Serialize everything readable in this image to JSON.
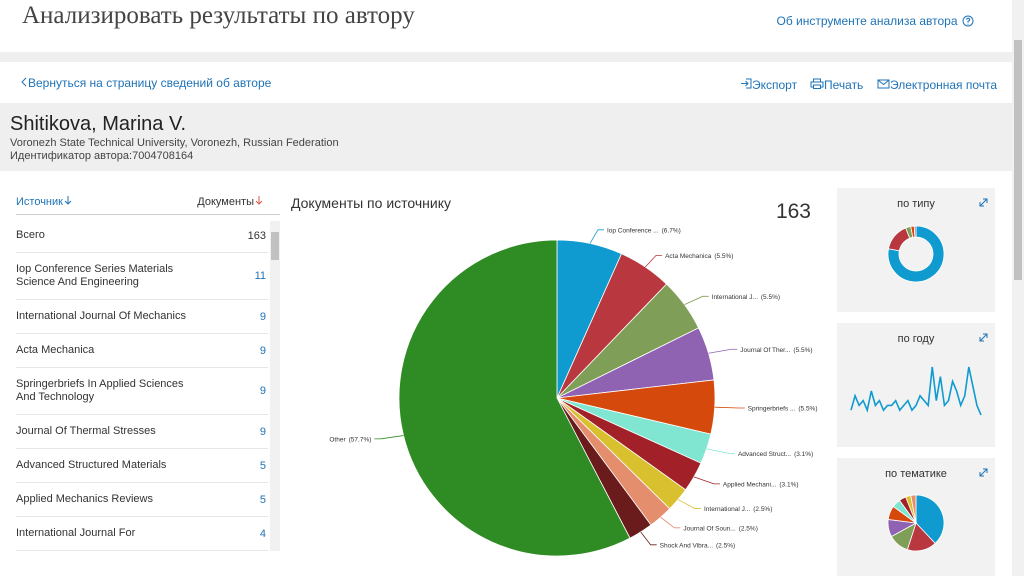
{
  "header": {
    "title": "Анализировать результаты по автору",
    "help_link": "Об инструменте анализа автора"
  },
  "nav": {
    "back": "Вернуться на страницу сведений об авторе",
    "export": "Экспорт",
    "print": "Печать",
    "email": "Электронная почта"
  },
  "author": {
    "name": "Shitikova, Marina V.",
    "affiliation": "Voronezh State Technical University, Voronezh, Russian Federation",
    "id": "Идентификатор автора:7004708164"
  },
  "table": {
    "headers": [
      "Источник",
      "Документы"
    ],
    "rows": [
      [
        "Всего",
        163
      ],
      [
        "Iop Conference Series Materials Science And Engineering",
        11
      ],
      [
        "International Journal Of Mechanics",
        9
      ],
      [
        "Acta Mechanica",
        9
      ],
      [
        "Springerbriefs In Applied Sciences And Technology",
        9
      ],
      [
        "Journal Of Thermal Stresses",
        9
      ],
      [
        "Advanced Structured Materials",
        5
      ],
      [
        "Applied Mechanics Reviews",
        5
      ],
      [
        "International Journal For",
        4
      ]
    ]
  },
  "chart_data": [
    {
      "type": "pie",
      "title": "Документы по источнику",
      "total": 163,
      "categories": [
        "Iop Conference ...",
        "Acta Mechanica",
        "International J...",
        "Journal Of Ther...",
        "Springerbriefs ...",
        "Advanced Struct...",
        "Applied Mechani...",
        "International J...",
        "Journal Of Soun...",
        "Shock And Vibra...",
        "Other"
      ],
      "values": [
        6.7,
        5.5,
        5.5,
        5.5,
        5.5,
        3.1,
        3.1,
        2.5,
        2.5,
        2.5,
        57.7
      ],
      "value_labels": [
        "(6.7%)",
        "(5.5%)",
        "(5.5%)",
        "(5.5%)",
        "(5.5%)",
        "(3.1%)",
        "(3.1%)",
        "(2.5%)",
        "(2.5%)",
        "(2.5%)",
        "(57.7%)"
      ],
      "colors": [
        "#0f9bd0",
        "#b9373f",
        "#7f9e57",
        "#8f62b2",
        "#d6490c",
        "#80e6d2",
        "#a22129",
        "#d9c02f",
        "#e58e6e",
        "#6a1c1c",
        "#2f8b23"
      ]
    },
    {
      "type": "donut",
      "title": "по типу",
      "values": [
        78,
        16,
        3,
        2,
        1
      ],
      "colors": [
        "#0f9bd0",
        "#b9373f",
        "#7f9e57",
        "#d6490c",
        "#8f62b2"
      ]
    },
    {
      "type": "line",
      "title": "по году",
      "color": "#0f9bd0",
      "values": [
        1,
        4,
        2,
        3,
        1,
        5,
        2,
        3,
        1,
        2,
        2,
        3,
        1,
        2,
        3,
        1,
        2,
        4,
        3,
        2,
        10,
        3,
        8,
        2,
        3,
        7,
        5,
        2,
        4,
        10,
        6,
        2,
        0
      ]
    },
    {
      "type": "pie",
      "title": "по тематике",
      "values": [
        38,
        17,
        12,
        10,
        8,
        5,
        4,
        3,
        3
      ],
      "colors": [
        "#0f9bd0",
        "#b9373f",
        "#7f9e57",
        "#8f62b2",
        "#d6490c",
        "#80e6d2",
        "#a22129",
        "#d9c02f",
        "#e58e6e"
      ]
    }
  ]
}
